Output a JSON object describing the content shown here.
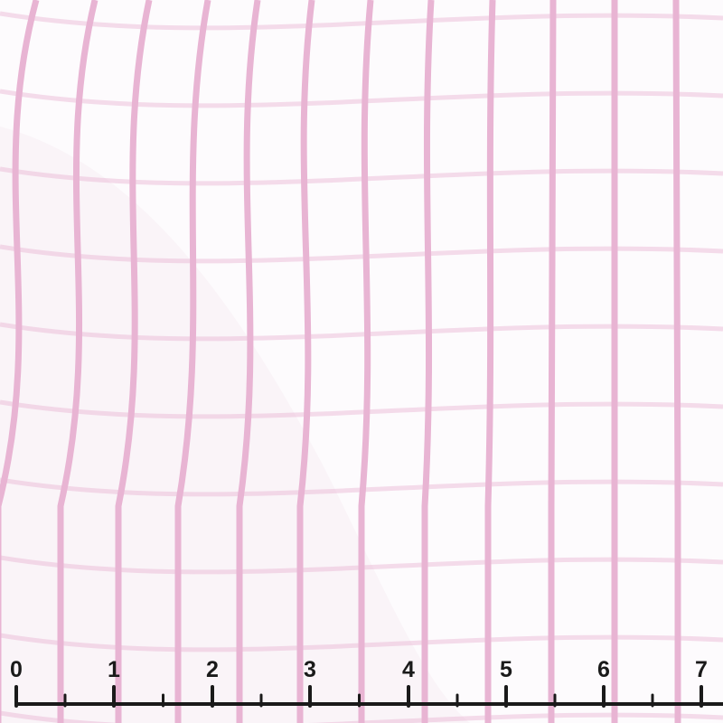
{
  "colors": {
    "stripe": "#e8b4d3",
    "background": "#fdfbfd",
    "ruler": "#1a1a1a"
  },
  "ruler": {
    "labels": [
      "0",
      "1",
      "2",
      "3",
      "4",
      "5",
      "6",
      "7"
    ]
  }
}
